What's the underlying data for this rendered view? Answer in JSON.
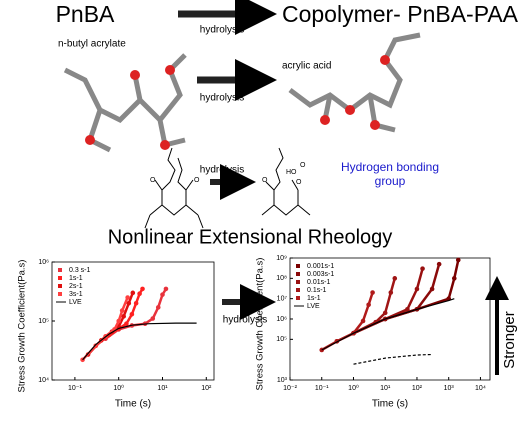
{
  "diagram": {
    "title_left": "PnBA",
    "title_right": "Copolymer- PnBA-PAA",
    "arrow_label_top": "hydrolysis",
    "monomer_left": "n-butyl acrylate",
    "monomer_right": "acrylic acid",
    "arrow_label_mid": "hydrolysis",
    "arrow_label_struct": "hydrolysis",
    "hbond_note": "Hydrogen bonding group",
    "atom_labels": [
      "O",
      "O",
      "O",
      "O",
      "O",
      "HO"
    ],
    "section_title": "Nonlinear Extensional Rheology",
    "arrow_label_charts": "hydrolysis",
    "stronger": "Stronger"
  },
  "chart_data": [
    {
      "type": "line",
      "log_x": true,
      "log_y": true,
      "x_label": "Time (s)",
      "y_label": "Stress Growth Coefficient(Pa.s)",
      "xlim": [
        0.03,
        150
      ],
      "ylim": [
        10000,
        1000000
      ],
      "xticks": [
        {
          "value": 0.1,
          "label": "10⁻¹"
        },
        {
          "value": 1,
          "label": "10⁰"
        },
        {
          "value": 10,
          "label": "10¹"
        },
        {
          "value": 100,
          "label": "10²"
        }
      ],
      "yticks": [
        {
          "value": 10000,
          "label": "10⁴"
        },
        {
          "value": 100000,
          "label": "10⁵"
        },
        {
          "value": 1000000,
          "label": "10⁶"
        }
      ],
      "series": [
        {
          "name": "0.3 s-1",
          "color": "#e8323c",
          "markers": true,
          "x": [
            0.5,
            1,
            2,
            4,
            6,
            8,
            10,
            12
          ],
          "values": [
            50000,
            72000,
            84000,
            90000,
            110000,
            170000,
            280000,
            350000
          ]
        },
        {
          "name": "1s-1",
          "color": "#ff2020",
          "markers": true,
          "x": [
            0.3,
            0.6,
            1,
            1.5,
            2,
            2.5,
            3,
            3.5
          ],
          "values": [
            38000,
            58000,
            74000,
            90000,
            130000,
            200000,
            290000,
            350000
          ]
        },
        {
          "name": "2s-1",
          "color": "#e01010",
          "markers": true,
          "x": [
            0.2,
            0.4,
            0.7,
            1,
            1.3,
            1.7,
            2.1
          ],
          "values": [
            27000,
            47000,
            66000,
            80000,
            120000,
            200000,
            300000
          ]
        },
        {
          "name": "3s-1",
          "color": "#ff4040",
          "markers": true,
          "x": [
            0.15,
            0.3,
            0.5,
            0.8,
            1,
            1.2,
            1.6
          ],
          "values": [
            22000,
            38000,
            55000,
            72000,
            100000,
            150000,
            250000
          ]
        },
        {
          "name": "LVE",
          "color": "#000000",
          "markers": false,
          "x": [
            0.15,
            0.3,
            0.6,
            1,
            2,
            5,
            20,
            60
          ],
          "values": [
            22000,
            40000,
            60000,
            75000,
            85000,
            90000,
            92000,
            92000
          ]
        }
      ]
    },
    {
      "type": "line",
      "log_x": true,
      "log_y": true,
      "x_label": "Time (s)",
      "y_label": "Stress Growth Coefficient(Pa.s)",
      "xlim": [
        0.01,
        20000
      ],
      "ylim": [
        1000,
        1000000000
      ],
      "xticks": [
        {
          "value": 0.01,
          "label": "10⁻²"
        },
        {
          "value": 0.1,
          "label": "10⁻¹"
        },
        {
          "value": 1,
          "label": "10⁰"
        },
        {
          "value": 10,
          "label": "10¹"
        },
        {
          "value": 100,
          "label": "10²"
        },
        {
          "value": 1000,
          "label": "10³"
        },
        {
          "value": 10000,
          "label": "10⁴"
        }
      ],
      "yticks": [
        {
          "value": 1000,
          "label": "10³"
        },
        {
          "value": 100000,
          "label": "10⁵"
        },
        {
          "value": 1000000,
          "label": "10⁶"
        },
        {
          "value": 10000000,
          "label": "10⁷"
        },
        {
          "value": 100000000,
          "label": "10⁸"
        },
        {
          "value": 1000000000,
          "label": "10⁹"
        }
      ],
      "series": [
        {
          "name": "0.001s-1",
          "color": "#7a0000",
          "markers": true,
          "x": [
            1,
            10,
            100,
            1000,
            1500,
            2000
          ],
          "values": [
            200000,
            1000000,
            3000000,
            10000000,
            100000000,
            800000000
          ]
        },
        {
          "name": "0.003s-1",
          "color": "#8b0a0a",
          "markers": true,
          "x": [
            1,
            10,
            100,
            300,
            500
          ],
          "values": [
            200000,
            1000000,
            3000000,
            30000000,
            500000000
          ]
        },
        {
          "name": "0.01s-1",
          "color": "#991010",
          "markers": true,
          "x": [
            1,
            10,
            50,
            100,
            150
          ],
          "values": [
            200000,
            1000000,
            3000000,
            30000000,
            300000000
          ]
        },
        {
          "name": "0.1s-1",
          "color": "#a01515",
          "markers": true,
          "x": [
            0.3,
            1,
            5,
            10,
            15,
            20
          ],
          "values": [
            80000,
            200000,
            700000,
            2000000,
            20000000,
            100000000
          ]
        },
        {
          "name": "1s-1",
          "color": "#b01a1a",
          "markers": true,
          "x": [
            0.1,
            0.3,
            1,
            2,
            3,
            4
          ],
          "values": [
            30000,
            80000,
            200000,
            800000,
            5000000,
            20000000
          ]
        },
        {
          "name": "LVE",
          "color": "#000000",
          "markers": false,
          "x": [
            0.1,
            1,
            10,
            100,
            1000,
            1500
          ],
          "values": [
            30000,
            200000,
            1000000,
            3000000,
            8000000,
            10000000
          ]
        },
        {
          "color": "#000000",
          "markers": false,
          "dash": true,
          "x": [
            1,
            10,
            100,
            300
          ],
          "values": [
            6000,
            12000,
            17000,
            18000
          ]
        }
      ]
    }
  ]
}
